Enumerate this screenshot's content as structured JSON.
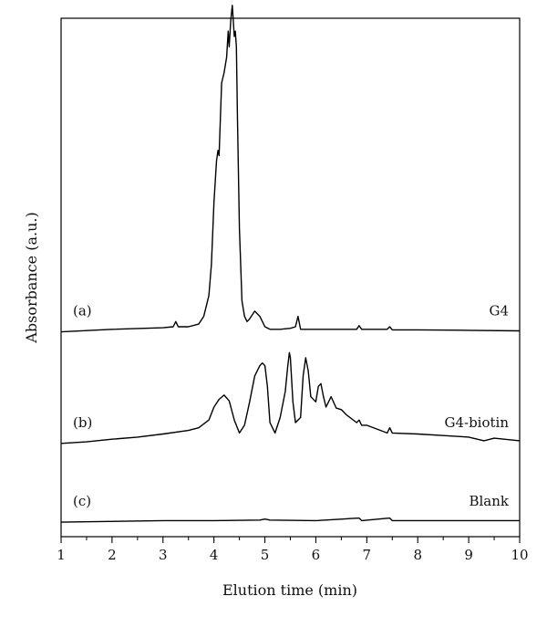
{
  "chart_data": {
    "type": "line",
    "title": "",
    "xlabel": "Elution time (min)",
    "ylabel": "Absorbance (a.u.)",
    "xlim": [
      1,
      10
    ],
    "ylim": [
      0,
      1
    ],
    "x_ticks": [
      1,
      2,
      3,
      4,
      5,
      6,
      7,
      8,
      9,
      10
    ],
    "grid": false,
    "y_tick_labels": false,
    "series": [
      {
        "name": "G4",
        "tag": "(a)",
        "baseline": 0.395,
        "x": [
          1,
          2,
          3,
          3.2,
          3.25,
          3.3,
          3.5,
          3.7,
          3.8,
          3.9,
          3.95,
          4.0,
          4.05,
          4.08,
          4.1,
          4.15,
          4.2,
          4.25,
          4.28,
          4.3,
          4.33,
          4.36,
          4.38,
          4.4,
          4.42,
          4.44,
          4.46,
          4.5,
          4.55,
          4.6,
          4.65,
          4.7,
          4.8,
          4.9,
          5.0,
          5.1,
          5.3,
          5.5,
          5.6,
          5.65,
          5.7,
          5.8,
          6.0,
          6.5,
          6.8,
          6.85,
          6.9,
          7.4,
          7.45,
          7.5,
          8,
          9,
          10
        ],
        "y": [
          0.0,
          0.005,
          0.008,
          0.01,
          0.02,
          0.01,
          0.01,
          0.015,
          0.03,
          0.07,
          0.13,
          0.25,
          0.33,
          0.35,
          0.34,
          0.48,
          0.5,
          0.53,
          0.58,
          0.55,
          0.6,
          0.63,
          0.6,
          0.57,
          0.58,
          0.55,
          0.42,
          0.2,
          0.06,
          0.03,
          0.02,
          0.025,
          0.04,
          0.03,
          0.01,
          0.005,
          0.005,
          0.007,
          0.01,
          0.03,
          0.005,
          0.005,
          0.005,
          0.005,
          0.005,
          0.012,
          0.005,
          0.005,
          0.01,
          0.004,
          0.004,
          0.003,
          0.002
        ]
      },
      {
        "name": "G4-biotin",
        "tag": "(b)",
        "baseline": 0.18,
        "x": [
          1,
          1.5,
          2,
          2.5,
          3,
          3.5,
          3.7,
          3.9,
          4.0,
          4.1,
          4.2,
          4.3,
          4.4,
          4.5,
          4.6,
          4.7,
          4.8,
          4.9,
          4.95,
          5.0,
          5.05,
          5.1,
          5.2,
          5.3,
          5.4,
          5.45,
          5.48,
          5.5,
          5.55,
          5.6,
          5.7,
          5.75,
          5.8,
          5.85,
          5.9,
          6.0,
          6.05,
          6.1,
          6.15,
          6.2,
          6.3,
          6.4,
          6.5,
          6.6,
          6.8,
          6.85,
          6.9,
          7.0,
          7.4,
          7.45,
          7.5,
          8,
          8.5,
          9,
          9.3,
          9.5,
          10
        ],
        "y": [
          0.0,
          0.003,
          0.008,
          0.012,
          0.018,
          0.025,
          0.03,
          0.045,
          0.07,
          0.085,
          0.093,
          0.082,
          0.045,
          0.02,
          0.035,
          0.08,
          0.13,
          0.15,
          0.155,
          0.15,
          0.11,
          0.04,
          0.02,
          0.05,
          0.1,
          0.15,
          0.175,
          0.165,
          0.08,
          0.04,
          0.05,
          0.13,
          0.165,
          0.14,
          0.09,
          0.08,
          0.11,
          0.115,
          0.09,
          0.07,
          0.09,
          0.068,
          0.065,
          0.055,
          0.04,
          0.045,
          0.035,
          0.035,
          0.02,
          0.03,
          0.02,
          0.018,
          0.015,
          0.012,
          0.005,
          0.01,
          0.005
        ]
      },
      {
        "name": "Blank",
        "tag": "(c)",
        "baseline": 0.028,
        "x": [
          1,
          3,
          4,
          4.9,
          5.0,
          5.1,
          6,
          6.85,
          6.9,
          7.45,
          7.5,
          8,
          9,
          10
        ],
        "y": [
          0.0,
          0.003,
          0.003,
          0.004,
          0.006,
          0.004,
          0.003,
          0.008,
          0.003,
          0.008,
          0.003,
          0.003,
          0.003,
          0.003
        ]
      }
    ]
  }
}
